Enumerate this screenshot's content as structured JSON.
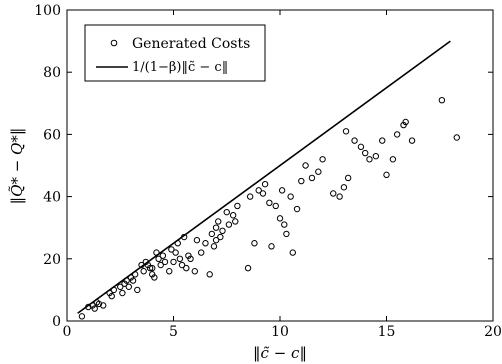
{
  "chart_data": {
    "type": "scatter",
    "title": "",
    "xlabel": "‖c̃ − c‖",
    "ylabel": "‖Q̃* − Q*‖",
    "xlim": [
      0,
      20
    ],
    "ylim": [
      0,
      100
    ],
    "xticks": [
      0,
      5,
      10,
      15,
      20
    ],
    "yticks": [
      0,
      20,
      40,
      60,
      80,
      100
    ],
    "grid": false,
    "legend_position": "top-left",
    "series": [
      {
        "name": "Generated Costs",
        "marker": "circle-open",
        "x": [
          0.7,
          1.0,
          1.2,
          1.3,
          1.4,
          1.5,
          1.7,
          2.0,
          2.1,
          2.2,
          2.5,
          2.6,
          2.7,
          2.8,
          2.9,
          3.0,
          3.1,
          3.2,
          3.3,
          3.5,
          3.6,
          3.7,
          3.8,
          3.9,
          4.0,
          4.0,
          4.1,
          4.2,
          4.3,
          4.4,
          4.5,
          4.6,
          4.8,
          4.9,
          5.0,
          5.1,
          5.2,
          5.3,
          5.4,
          5.5,
          5.6,
          5.7,
          5.8,
          6.0,
          6.1,
          6.3,
          6.5,
          6.7,
          6.8,
          6.9,
          7.0,
          7.0,
          7.1,
          7.2,
          7.3,
          7.5,
          7.6,
          7.8,
          7.9,
          8.0,
          8.5,
          8.6,
          8.8,
          9.0,
          9.2,
          9.3,
          9.5,
          9.6,
          9.8,
          10.0,
          10.1,
          10.2,
          10.3,
          10.5,
          10.6,
          10.8,
          11.0,
          11.2,
          11.5,
          11.8,
          12.0,
          12.5,
          12.8,
          13.0,
          13.1,
          13.2,
          13.5,
          13.8,
          14.0,
          14.2,
          14.5,
          14.8,
          15.0,
          15.3,
          15.5,
          15.8,
          15.9,
          16.2,
          17.6,
          18.3
        ],
        "y": [
          1.5,
          4.5,
          5,
          4,
          6,
          5.5,
          5,
          9,
          8,
          10,
          11,
          9,
          12,
          13,
          11,
          14,
          13,
          15,
          10,
          18,
          16,
          19,
          18,
          17,
          15,
          17,
          14,
          22,
          20,
          18,
          21,
          19,
          16,
          23,
          19,
          22,
          25,
          20,
          18,
          27,
          17,
          21,
          20,
          16,
          26,
          22,
          25,
          15,
          28,
          24,
          30,
          26,
          32,
          27,
          29,
          35,
          31,
          34,
          32,
          37,
          17,
          40,
          25,
          42,
          41,
          44,
          38,
          24,
          37,
          33,
          42,
          31,
          28,
          40,
          22,
          36,
          45,
          50,
          46,
          48,
          52,
          41,
          40,
          43,
          61,
          46,
          58,
          56,
          54,
          52,
          53,
          58,
          47,
          52,
          60,
          63,
          64,
          58,
          71,
          59
        ]
      },
      {
        "name": "1/(1−β)‖c̃ − c‖",
        "marker": "line",
        "x": [
          0.5,
          18
        ],
        "y": [
          2.5,
          90
        ]
      }
    ]
  }
}
